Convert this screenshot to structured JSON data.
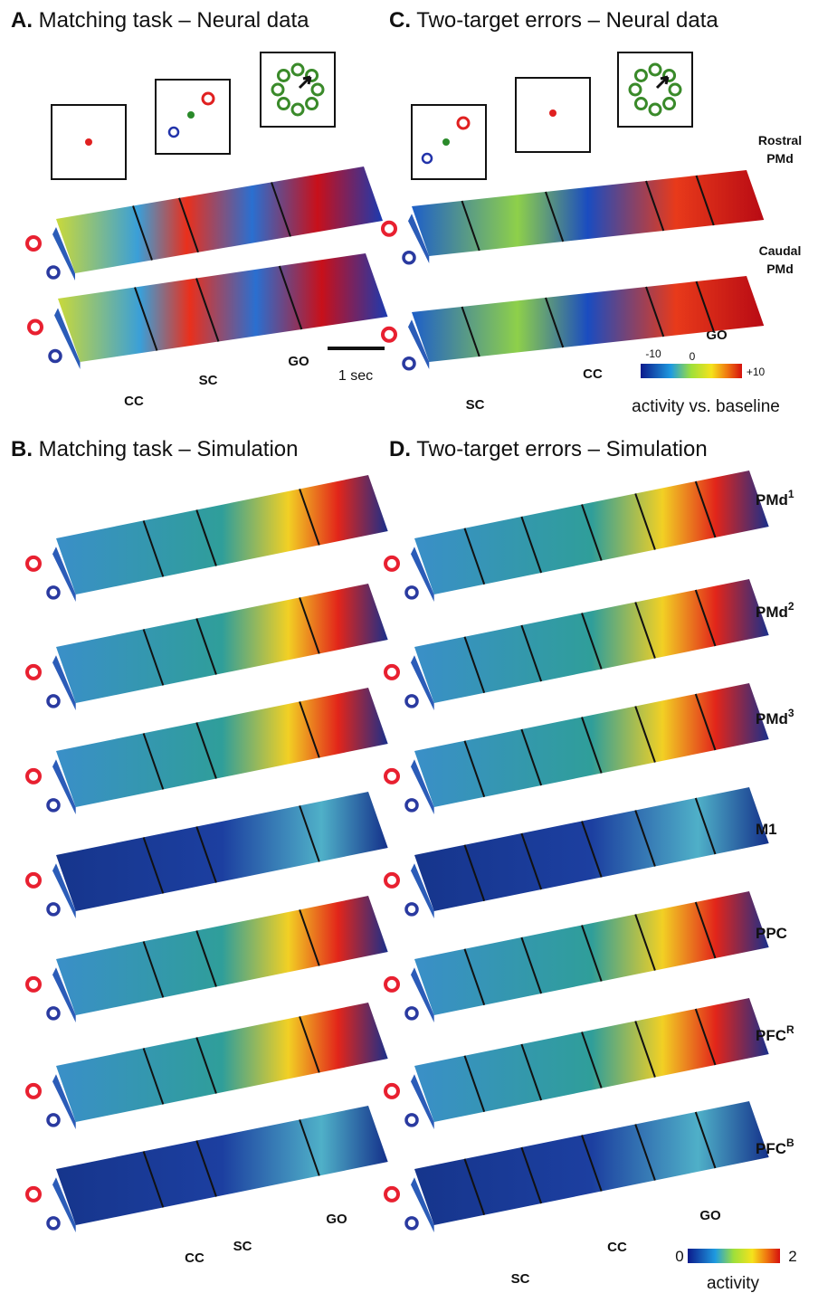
{
  "panels": [
    {
      "label": "A.",
      "title": "Matching task – Neural data",
      "events": [
        "CC",
        "SC",
        "GO"
      ],
      "scale_bar": "1 sec"
    },
    {
      "label": "B.",
      "title": "Matching task – Simulation",
      "events": [
        "CC",
        "SC",
        "GO"
      ]
    },
    {
      "label": "C.",
      "title": "Two-target errors – Neural data",
      "events": [
        "SC",
        "CC",
        "GO"
      ],
      "rows": [
        [
          "Rostral",
          "PMd"
        ],
        [
          "Caudal",
          "PMd"
        ]
      ],
      "colorbar": {
        "ticks": [
          "-10",
          "0",
          "+10"
        ],
        "label": "activity vs. baseline"
      }
    },
    {
      "label": "D.",
      "title": "Two-target errors – Simulation",
      "events": [
        "SC",
        "CC",
        "GO"
      ],
      "rows": [
        {
          "name": "PMd",
          "sup": "1"
        },
        {
          "name": "PMd",
          "sup": "2"
        },
        {
          "name": "PMd",
          "sup": "3"
        },
        {
          "name": "M1"
        },
        {
          "name": "PPC"
        },
        {
          "name": "PFC",
          "sup": "R"
        },
        {
          "name": "PFC",
          "sup": "B"
        }
      ],
      "colorbar": {
        "ticks": [
          "0",
          "2"
        ],
        "label": "activity"
      }
    }
  ]
}
